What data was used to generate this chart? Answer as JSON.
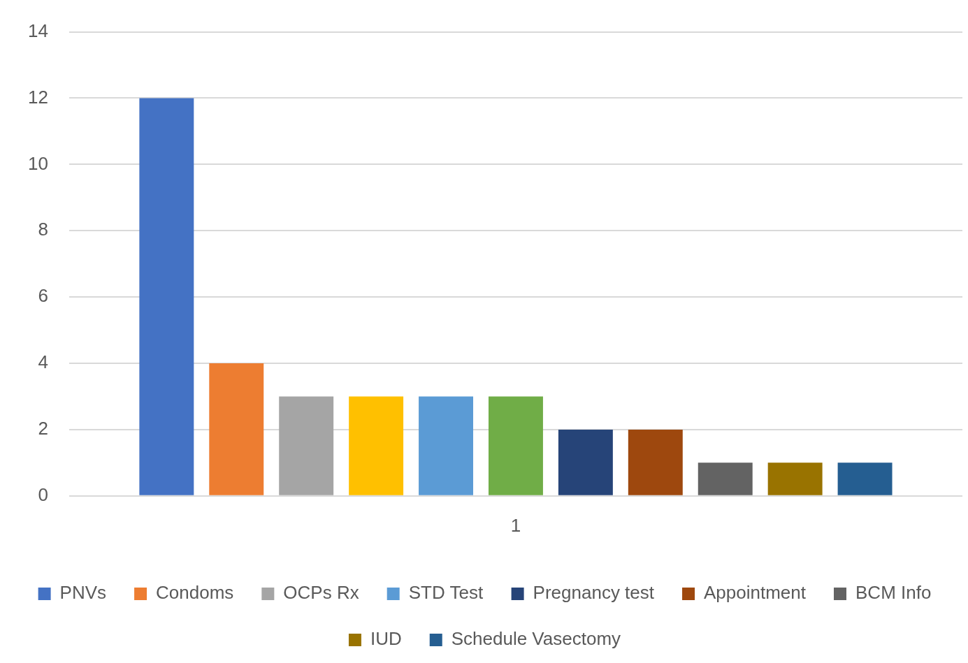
{
  "chart_data": {
    "type": "bar",
    "categories": [
      "1"
    ],
    "series": [
      {
        "name": "PNVs",
        "color": "#4472c4",
        "values": [
          12
        ]
      },
      {
        "name": "Condoms",
        "color": "#ed7d31",
        "values": [
          4
        ]
      },
      {
        "name": "OCPs Rx",
        "color": "#a5a5a5",
        "values": [
          3
        ]
      },
      {
        "color": "#ffc000",
        "values": [
          3
        ]
      },
      {
        "name": "STD Test",
        "color": "#5b9bd5",
        "values": [
          3
        ]
      },
      {
        "color": "#70ad47",
        "values": [
          3
        ]
      },
      {
        "name": "Pregnancy test",
        "color": "#264478",
        "values": [
          2
        ]
      },
      {
        "name": "Appointment",
        "color": "#9e480e",
        "values": [
          2
        ]
      },
      {
        "name": "BCM Info",
        "color": "#636363",
        "values": [
          1
        ]
      },
      {
        "name": "IUD",
        "color": "#997300",
        "values": [
          1
        ]
      },
      {
        "name": "Schedule Vasectomy",
        "color": "#255e91",
        "values": [
          1
        ]
      }
    ],
    "ylim": [
      0,
      14
    ],
    "yticks": [
      0,
      2,
      4,
      6,
      8,
      10,
      12,
      14
    ],
    "grid": "y",
    "legend": "bottom"
  }
}
